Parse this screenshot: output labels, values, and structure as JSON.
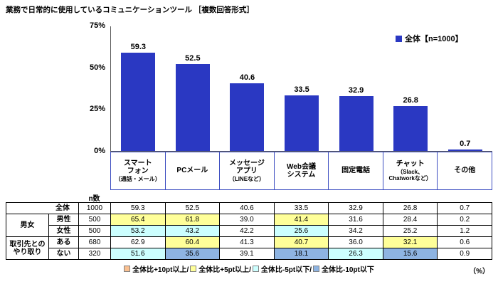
{
  "title": "業務で日常的に使用しているコミュニケーションツール ［複数回答形式］",
  "chart_data": {
    "type": "bar",
    "title": "業務で日常的に使用しているコミュニケーションツール ［複数回答形式］",
    "legend": "全体【n=1000】",
    "legend_position": "top-right",
    "grid": false,
    "ylim": [
      0,
      75
    ],
    "yticks": [
      "75%",
      "50%",
      "25%",
      "0%"
    ],
    "bar_color": "#2A38C2",
    "categories": [
      "スマートフォン（通話・メール）",
      "PCメール",
      "メッセージアプリ（LINEなど）",
      "Web会議システム",
      "固定電話",
      "チャット（Slack、Chatworkなど）",
      "その他"
    ],
    "values": [
      59.3,
      52.5,
      40.6,
      33.5,
      32.9,
      26.8,
      0.7
    ],
    "category_labels": [
      {
        "main": "スマート\nフォン",
        "sub": "（通話・メール）"
      },
      {
        "main": "PCメール",
        "sub": ""
      },
      {
        "main": "メッセージ\nアプリ",
        "sub": "（LINEなど）"
      },
      {
        "main": "Web会議\nシステム",
        "sub": ""
      },
      {
        "main": "固定電話",
        "sub": ""
      },
      {
        "main": "チャット",
        "sub": "（Slack、\nChatworkなど）"
      },
      {
        "main": "その他",
        "sub": ""
      }
    ]
  },
  "table": {
    "n_header": "n数",
    "groups": [
      "男女",
      "取引先との\nやり取り"
    ],
    "rows": [
      {
        "label": "全体",
        "n": "1000",
        "values": [
          "59.3",
          "52.5",
          "40.6",
          "33.5",
          "32.9",
          "26.8",
          "0.7"
        ],
        "hl": [
          "",
          "",
          "",
          "",
          "",
          "",
          ""
        ]
      },
      {
        "label": "男性",
        "n": "500",
        "values": [
          "65.4",
          "61.8",
          "39.0",
          "41.4",
          "31.6",
          "28.4",
          "0.2"
        ],
        "hl": [
          "p5",
          "p5",
          "",
          "p5",
          "",
          "",
          ""
        ]
      },
      {
        "label": "女性",
        "n": "500",
        "values": [
          "53.2",
          "43.2",
          "42.2",
          "25.6",
          "34.2",
          "25.2",
          "1.2"
        ],
        "hl": [
          "m5",
          "m5",
          "",
          "m5",
          "",
          "",
          ""
        ]
      },
      {
        "label": "ある",
        "n": "680",
        "values": [
          "62.9",
          "60.4",
          "41.3",
          "40.7",
          "36.0",
          "32.1",
          "0.6"
        ],
        "hl": [
          "",
          "p5",
          "",
          "p5",
          "",
          "p5",
          ""
        ]
      },
      {
        "label": "ない",
        "n": "320",
        "values": [
          "51.6",
          "35.6",
          "39.1",
          "18.1",
          "26.3",
          "15.6",
          "0.9"
        ],
        "hl": [
          "m5",
          "m10",
          "",
          "m10",
          "m5",
          "m10",
          ""
        ]
      }
    ]
  },
  "footer_legend": {
    "items": [
      {
        "code": "p10",
        "color": "#FAC090",
        "label": "全体比+10pt以上/"
      },
      {
        "code": "p5",
        "color": "#FFFF99",
        "label": "全体比+5pt以上/"
      },
      {
        "code": "m5",
        "color": "#CCFFFF",
        "label": "全体比-5pt以下/"
      },
      {
        "code": "m10",
        "color": "#8EB4E2",
        "label": "全体比-10pt以下"
      }
    ],
    "unit": "（%）"
  }
}
